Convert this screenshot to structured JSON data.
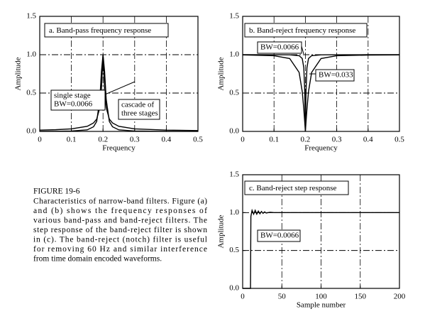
{
  "chart_data": [
    {
      "type": "line",
      "title": "a.  Band-pass frequency response",
      "x_label": "Frequency",
      "y_label": "Amplitude",
      "x": [
        0,
        0.05,
        0.1,
        0.15,
        0.17,
        0.18,
        0.19,
        0.195,
        0.2,
        0.205,
        0.21,
        0.22,
        0.23,
        0.25,
        0.3,
        0.4,
        0.5
      ],
      "series": [
        {
          "color": "#000000",
          "values": [
            0.017,
            0.022,
            0.033,
            0.066,
            0.11,
            0.16,
            0.31,
            0.55,
            1,
            0.55,
            0.31,
            0.16,
            0.11,
            0.066,
            0.033,
            0.017,
            0.011
          ]
        },
        {
          "color": "#000000",
          "values": [
            0.001,
            0.002,
            0.005,
            0.02,
            0.06,
            0.13,
            0.42,
            0.78,
            1,
            0.78,
            0.42,
            0.13,
            0.06,
            0.02,
            0.005,
            0.001,
            0.0005
          ]
        }
      ],
      "annotations": [
        [
          "single stage",
          "BW=0.0066"
        ],
        [
          "cascade of",
          "three stages"
        ]
      ],
      "xlim": [
        0,
        0.5
      ],
      "xticks": [
        0,
        0.1,
        0.2,
        0.3,
        0.4,
        0.5
      ],
      "ylim": [
        0,
        1.5
      ],
      "yticks": [
        {
          "value": 0,
          "label": "0.0"
        },
        0.5,
        {
          "value": 1,
          "label": "1.0"
        },
        1.5
      ],
      "grid": true
    },
    {
      "type": "line",
      "title": "b.  Band-reject frequency response",
      "x_label": "Frequency",
      "y_label": "Amplitude",
      "x": [
        0,
        0.1,
        0.15,
        0.18,
        0.19,
        0.195,
        0.198,
        0.2,
        0.202,
        0.205,
        0.21,
        0.22,
        0.25,
        0.3,
        0.4,
        0.5
      ],
      "series": [
        {
          "color": "#000000",
          "values": [
            1,
            0.999,
            0.998,
            0.987,
            0.95,
            0.83,
            0.52,
            0,
            0.52,
            0.83,
            0.95,
            0.987,
            0.998,
            0.999,
            1,
            1
          ]
        },
        {
          "color": "#000000",
          "values": [
            0.997,
            0.987,
            0.95,
            0.77,
            0.52,
            0.29,
            0.12,
            0,
            0.12,
            0.29,
            0.52,
            0.77,
            0.95,
            0.987,
            0.995,
            0.997
          ]
        }
      ],
      "annotations": [
        [
          "BW=0.0066"
        ],
        [
          "BW=0.033"
        ]
      ],
      "xlim": [
        0,
        0.5
      ],
      "xticks": [
        0,
        0.1,
        0.2,
        0.3,
        0.4,
        0.5
      ],
      "ylim": [
        0,
        1.5
      ],
      "yticks": [
        {
          "value": 0,
          "label": "0.0"
        },
        0.5,
        {
          "value": 1,
          "label": "1.0"
        },
        1.5
      ],
      "grid": true
    },
    {
      "type": "line",
      "title": "c.  Band-reject step response",
      "x_label": "Sample number",
      "y_label": "Amplitude",
      "x": [
        0,
        10,
        10.5,
        12,
        14,
        16,
        18,
        20,
        22,
        24,
        26,
        28,
        30,
        35,
        40,
        60,
        100,
        150,
        200
      ],
      "series": [
        {
          "color": "#000000",
          "values": [
            0,
            0,
            0.95,
            1.03,
            0.98,
            1.03,
            0.98,
            1.02,
            0.985,
            1.015,
            0.99,
            1.01,
            0.995,
            1.005,
            1,
            1,
            1,
            1,
            1
          ]
        }
      ],
      "annotations": [
        [
          "BW=0.0066"
        ]
      ],
      "xlim": [
        0,
        200
      ],
      "xticks": [
        0,
        50,
        100,
        150,
        200
      ],
      "ylim": [
        0,
        1.5
      ],
      "yticks": [
        {
          "value": 0,
          "label": "0.0"
        },
        0.5,
        {
          "value": 1,
          "label": "1.0"
        },
        1.5
      ],
      "grid": true
    }
  ],
  "caption": {
    "label": "FIGURE 19-6",
    "lines": [
      "Characteristics of narrow-band filters. Figure (a)",
      "and (b) shows the frequency responses of",
      "various band-pass and band-reject filters.  The",
      "step response of the band-reject filter is shown",
      "in (c).  The band-reject (notch) filter is useful",
      "for removing 60 Hz and similar interference",
      "from time domain encoded waveforms."
    ]
  }
}
